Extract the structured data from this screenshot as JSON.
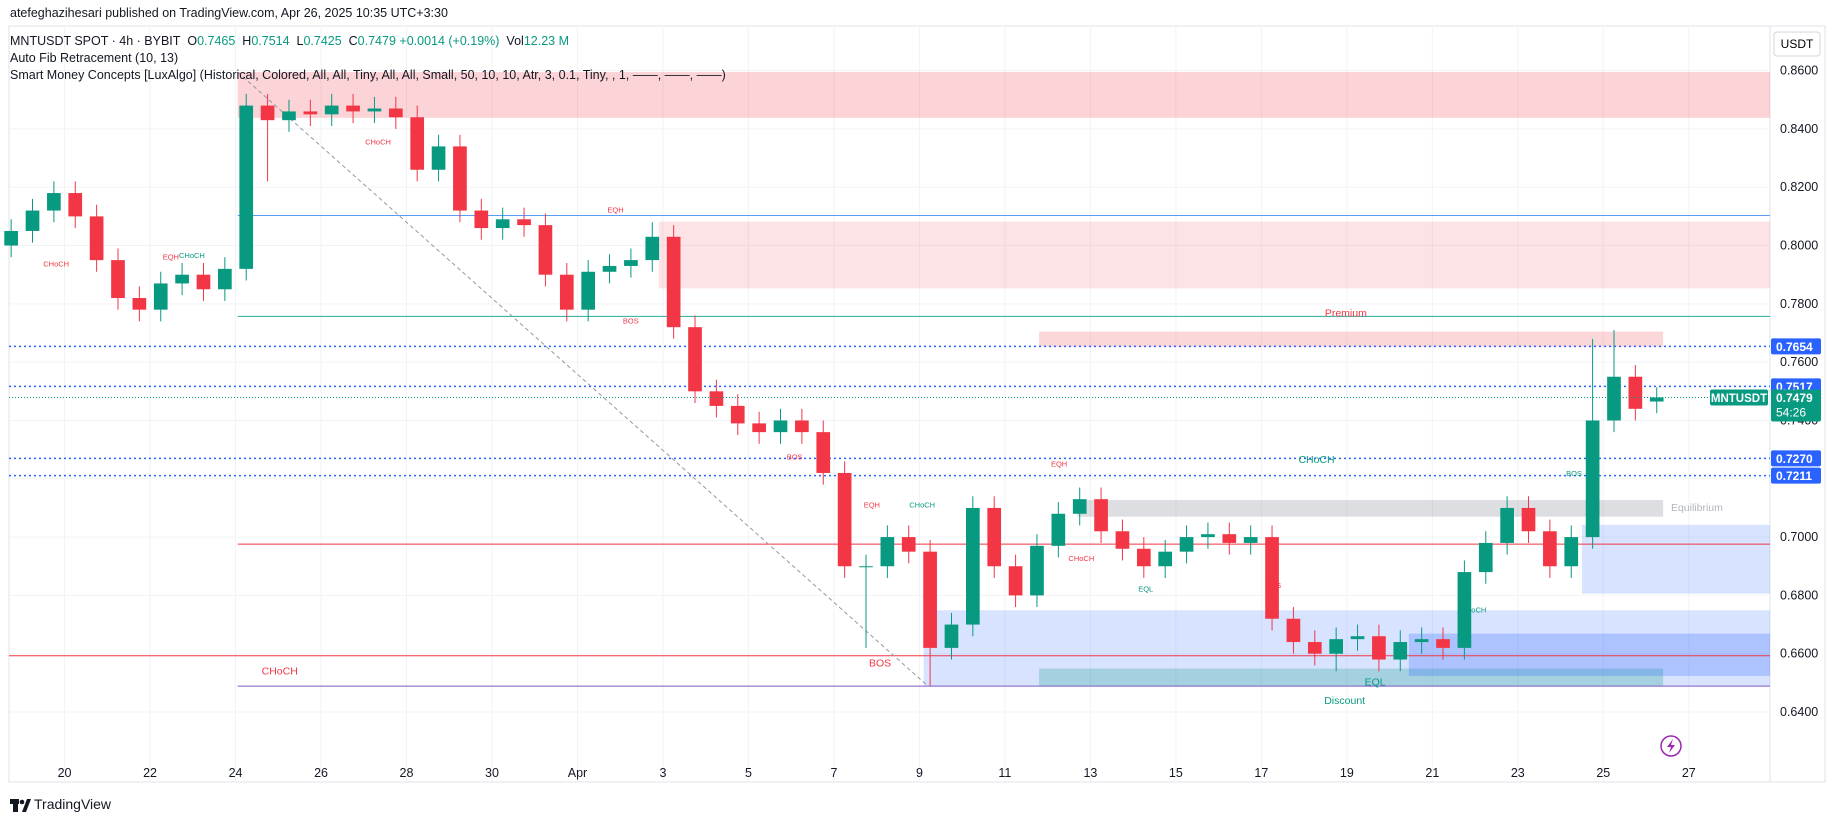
{
  "header": {
    "publisher": "atefeghazihesari published on TradingView.com, Apr 26, 2025 10:35 UTC+3:30"
  },
  "legend": {
    "symbol": "MNTUSDT SPOT · 4h · BYBIT",
    "o_label": "O",
    "o": "0.7465",
    "h_label": "H",
    "h": "0.7514",
    "l_label": "L",
    "l": "0.7425",
    "c_label": "C",
    "c": "0.7479",
    "change": "+0.0014 (+0.19%)",
    "vol_label": "Vol",
    "vol": "12.23 M",
    "indicators": [
      "Auto Fib Retracement (10, 13)",
      "Smart Money Concepts [LuxAlgo] (Historical, Colored, All, All, Tiny, All, All, Small, 50, 10, 10, Atr, 3, 0.1, Tiny, , 1, ——, ——, ——)"
    ]
  },
  "chart_data": {
    "type": "candlestick",
    "currency": "USDT",
    "up_color": "#089981",
    "down_color": "#f23645",
    "grid": true,
    "ylim": [
      0.616,
      0.8753
    ],
    "xlim": [
      18.7,
      59.9
    ],
    "yticks": [
      {
        "value": 0.64,
        "label": "0.6400"
      },
      {
        "value": 0.66,
        "label": "0.6600"
      },
      {
        "value": 0.68,
        "label": "0.6800"
      },
      {
        "value": 0.7,
        "label": "0.7000"
      },
      {
        "value": 0.72,
        "label": "0.7200"
      },
      {
        "value": 0.74,
        "label": "0.7400"
      },
      {
        "value": 0.76,
        "label": "0.7600"
      },
      {
        "value": 0.78,
        "label": "0.7800"
      },
      {
        "value": 0.8,
        "label": "0.8000"
      },
      {
        "value": 0.82,
        "label": "0.8200"
      },
      {
        "value": 0.84,
        "label": "0.8400"
      },
      {
        "value": 0.86,
        "label": "0.8600"
      }
    ],
    "xticks": [
      20,
      22,
      24,
      26,
      28,
      30,
      {
        "value": 32,
        "label": "Apr"
      },
      {
        "value": 34,
        "label": "3"
      },
      {
        "value": 36,
        "label": "5"
      },
      {
        "value": 38,
        "label": "7"
      },
      {
        "value": 40,
        "label": "9"
      },
      {
        "value": 42,
        "label": "11"
      },
      {
        "value": 44,
        "label": "13"
      },
      {
        "value": 46,
        "label": "15"
      },
      {
        "value": 48,
        "label": "17"
      },
      {
        "value": 50,
        "label": "19"
      },
      {
        "value": 52,
        "label": "21"
      },
      {
        "value": 54,
        "label": "23"
      },
      {
        "value": 56,
        "label": "25"
      },
      {
        "value": 58,
        "label": "27"
      }
    ],
    "x": [
      18.75,
      19.25,
      19.75,
      20.25,
      20.75,
      21.25,
      21.75,
      22.25,
      22.75,
      23.25,
      23.75,
      24.25,
      24.75,
      25.25,
      25.75,
      26.25,
      26.75,
      27.25,
      27.75,
      28.25,
      28.75,
      29.25,
      29.75,
      30.25,
      30.75,
      31.25,
      31.75,
      32.25,
      32.75,
      33.25,
      33.75,
      34.25,
      34.75,
      35.25,
      35.75,
      36.25,
      36.75,
      37.25,
      37.75,
      38.25,
      38.75,
      39.25,
      39.75,
      40.25,
      40.75,
      41.25,
      41.75,
      42.25,
      42.75,
      43.25,
      43.75,
      44.25,
      44.75,
      45.25,
      45.75,
      46.25,
      46.75,
      47.25,
      47.75,
      48.25,
      48.75,
      49.25,
      49.75,
      50.25,
      50.75,
      51.25,
      51.75,
      52.25,
      52.75,
      53.25,
      53.75,
      54.25,
      54.75,
      55.25,
      55.75,
      56.25,
      56.75,
      57.25
    ],
    "open": [
      0.8,
      0.805,
      0.812,
      0.818,
      0.81,
      0.795,
      0.782,
      0.778,
      0.787,
      0.79,
      0.785,
      0.792,
      0.848,
      0.843,
      0.846,
      0.845,
      0.848,
      0.846,
      0.847,
      0.844,
      0.826,
      0.834,
      0.812,
      0.806,
      0.809,
      0.807,
      0.79,
      0.778,
      0.791,
      0.793,
      0.795,
      0.803,
      0.772,
      0.75,
      0.745,
      0.739,
      0.736,
      0.74,
      0.736,
      0.722,
      0.69,
      0.69,
      0.7,
      0.695,
      0.662,
      0.67,
      0.71,
      0.69,
      0.68,
      0.697,
      0.708,
      0.713,
      0.702,
      0.696,
      0.69,
      0.695,
      0.7,
      0.701,
      0.698,
      0.7,
      0.672,
      0.664,
      0.66,
      0.665,
      0.666,
      0.658,
      0.664,
      0.665,
      0.662,
      0.688,
      0.698,
      0.71,
      0.702,
      0.69,
      0.7,
      0.74,
      0.755,
      0.7465
    ],
    "high": [
      0.809,
      0.816,
      0.822,
      0.822,
      0.814,
      0.799,
      0.786,
      0.791,
      0.794,
      0.794,
      0.796,
      0.852,
      0.852,
      0.85,
      0.85,
      0.852,
      0.852,
      0.851,
      0.851,
      0.848,
      0.838,
      0.838,
      0.816,
      0.813,
      0.813,
      0.811,
      0.794,
      0.795,
      0.797,
      0.799,
      0.808,
      0.807,
      0.776,
      0.754,
      0.749,
      0.743,
      0.744,
      0.744,
      0.74,
      0.726,
      0.694,
      0.704,
      0.704,
      0.699,
      0.674,
      0.714,
      0.714,
      0.694,
      0.701,
      0.712,
      0.717,
      0.717,
      0.706,
      0.7,
      0.699,
      0.704,
      0.705,
      0.705,
      0.704,
      0.704,
      0.676,
      0.668,
      0.669,
      0.67,
      0.67,
      0.668,
      0.669,
      0.669,
      0.692,
      0.702,
      0.714,
      0.714,
      0.706,
      0.704,
      0.768,
      0.771,
      0.759,
      0.7514
    ],
    "low": [
      0.796,
      0.801,
      0.808,
      0.806,
      0.791,
      0.778,
      0.774,
      0.774,
      0.783,
      0.781,
      0.781,
      0.788,
      0.822,
      0.839,
      0.841,
      0.841,
      0.842,
      0.842,
      0.84,
      0.822,
      0.822,
      0.808,
      0.802,
      0.802,
      0.803,
      0.786,
      0.774,
      0.774,
      0.787,
      0.789,
      0.791,
      0.768,
      0.746,
      0.741,
      0.735,
      0.732,
      0.732,
      0.732,
      0.718,
      0.686,
      0.662,
      0.686,
      0.691,
      0.649,
      0.658,
      0.666,
      0.686,
      0.676,
      0.676,
      0.693,
      0.704,
      0.698,
      0.692,
      0.686,
      0.686,
      0.691,
      0.696,
      0.694,
      0.694,
      0.668,
      0.66,
      0.656,
      0.654,
      0.661,
      0.654,
      0.654,
      0.66,
      0.658,
      0.658,
      0.684,
      0.694,
      0.698,
      0.686,
      0.686,
      0.696,
      0.736,
      0.74,
      0.7425
    ],
    "close": [
      0.805,
      0.812,
      0.818,
      0.81,
      0.795,
      0.782,
      0.778,
      0.787,
      0.79,
      0.785,
      0.792,
      0.848,
      0.843,
      0.846,
      0.845,
      0.848,
      0.846,
      0.847,
      0.844,
      0.826,
      0.834,
      0.812,
      0.806,
      0.809,
      0.807,
      0.79,
      0.778,
      0.791,
      0.793,
      0.795,
      0.803,
      0.772,
      0.75,
      0.745,
      0.739,
      0.736,
      0.74,
      0.736,
      0.722,
      0.69,
      0.69,
      0.7,
      0.695,
      0.662,
      0.67,
      0.71,
      0.69,
      0.68,
      0.697,
      0.708,
      0.713,
      0.702,
      0.696,
      0.69,
      0.695,
      0.7,
      0.701,
      0.698,
      0.7,
      0.672,
      0.664,
      0.66,
      0.665,
      0.666,
      0.658,
      0.664,
      0.665,
      0.662,
      0.688,
      0.698,
      0.71,
      0.702,
      0.69,
      0.7,
      0.74,
      0.755,
      0.744,
      0.7479
    ],
    "zones": [
      {
        "x": [
          24.05,
          59.9
        ],
        "y": [
          0.8438,
          0.8595
        ],
        "color": "rgba(242,54,69,0.22)"
      },
      {
        "x": [
          33.9,
          59.9
        ],
        "y": [
          0.7853,
          0.8082
        ],
        "color": "rgba(242,54,69,0.14)"
      },
      {
        "x": [
          42.8,
          57.4
        ],
        "y": [
          0.7653,
          0.7705
        ],
        "color": "rgba(242,54,69,0.2)"
      },
      {
        "x": [
          43.7,
          57.4
        ],
        "y": [
          0.707,
          0.7127
        ],
        "color": "rgba(120,123,134,0.25)"
      },
      {
        "x": [
          40.1,
          59.9
        ],
        "y": [
          0.6489,
          0.6749
        ],
        "color": "rgba(41,98,255,0.18)"
      },
      {
        "x": [
          42.8,
          57.4
        ],
        "y": [
          0.6489,
          0.6549
        ],
        "color": "rgba(8,153,129,0.25)"
      },
      {
        "x": [
          55.5,
          59.9
        ],
        "y": [
          0.6806,
          0.7042
        ],
        "color": "rgba(41,98,255,0.18)"
      },
      {
        "x": [
          51.45,
          59.9
        ],
        "y": [
          0.6524,
          0.6669
        ],
        "color": "rgba(41,98,255,0.25)"
      }
    ],
    "levels": [
      {
        "value": 0.8103,
        "from": 24.05,
        "color": "#5b9cf6"
      },
      {
        "value": 0.7757,
        "from": 24.05,
        "color": "#22ab94"
      },
      {
        "value": 0.6976,
        "from": 24.05,
        "color": "#f23645"
      },
      {
        "value": 0.6593,
        "from": 18.7,
        "color": "#f23645"
      },
      {
        "value": 0.6489,
        "from": 24.05,
        "color": "#7e57c2"
      }
    ],
    "trendline": {
      "x": [
        24.05,
        40.2
      ],
      "y": [
        0.8595,
        0.6489
      ]
    },
    "price_lines": [
      {
        "value": 0.7654,
        "label": "0.7654"
      },
      {
        "value": 0.7517,
        "label": "0.7517"
      },
      {
        "value": 0.727,
        "label": "0.7270"
      },
      {
        "value": 0.7211,
        "label": "0.7211"
      }
    ],
    "price_line_color": "#2962ff",
    "last": {
      "symbol": "MNTUSDT",
      "value": 0.7479,
      "label": "0.7479",
      "countdown": "54:26"
    },
    "annotations": [
      "CHoCH",
      "EQH",
      "CHoCH",
      "CHoCH",
      "EQH",
      "BOS",
      "Premium",
      "BOS",
      "EQH",
      "CHoCH",
      "EQH",
      "CHoCH",
      "BOS",
      "CHoCH",
      "EQL",
      "BOS",
      "CHoCH",
      "BOS",
      "CHoCH",
      "EQL",
      "Discount",
      "Equilibrium"
    ]
  },
  "footer": {
    "brand": "TradingView"
  }
}
